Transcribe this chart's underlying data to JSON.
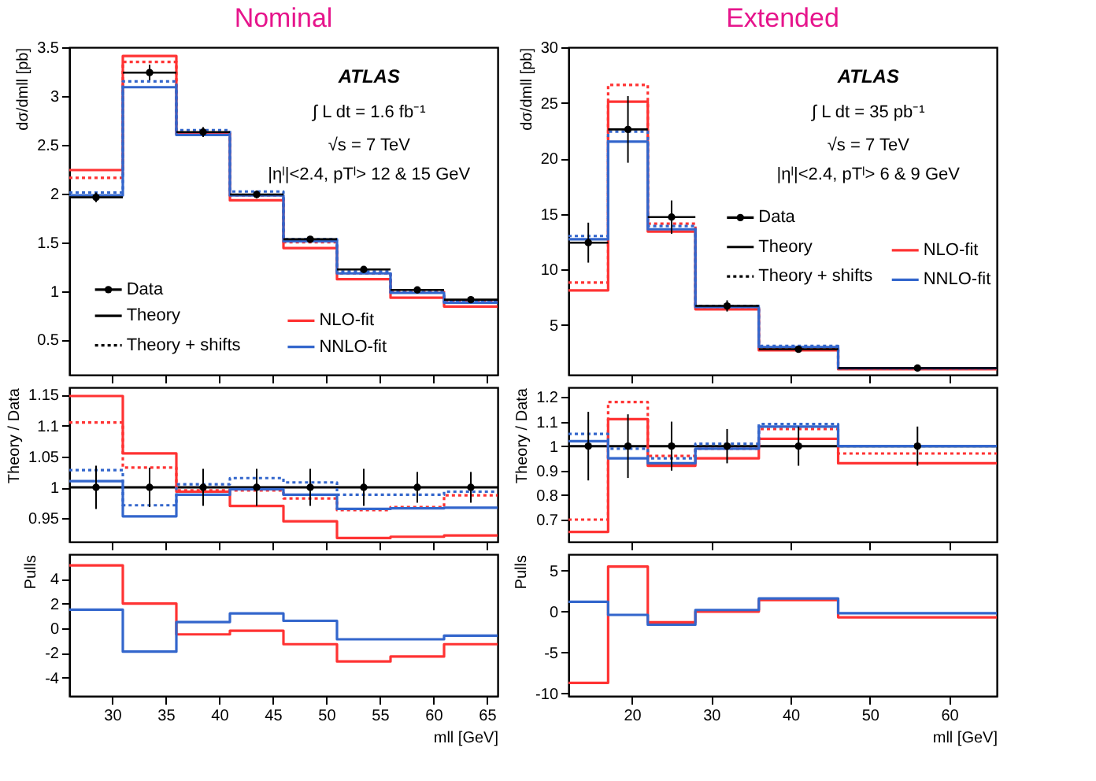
{
  "chart_data": [
    {
      "type": "step",
      "title": "Nominal",
      "ylabel": "dσ/dmll [pb]",
      "x": [
        26,
        31,
        36,
        41,
        46,
        51,
        56,
        61,
        66
      ],
      "xlim": [
        26,
        66
      ],
      "xticks": [
        30,
        35,
        40,
        45,
        50,
        55,
        60,
        65
      ],
      "ylim": [
        0.14,
        3.5
      ],
      "yticks": [
        0.5,
        1,
        1.5,
        2,
        2.5,
        3,
        3.5
      ],
      "tick_labels": "y",
      "legend": "bottom",
      "annotations": [
        "ATLAS",
        "∫ L dt = 1.6 fb⁻¹",
        "√s = 7 TeV",
        "|ηˡ|<2.4, pTˡ> 12 & 15 GeV",
        "Theory",
        "Theory + shifts"
      ],
      "series": [
        {
          "name": "NLO-fit",
          "color": "#ff3333",
          "values": [
            2.24,
            3.41,
            2.61,
            1.93,
            1.44,
            1.12,
            0.93,
            0.84,
            0.84
          ]
        },
        {
          "color": "#ff3333",
          "line_style": "dotted",
          "values": [
            2.16,
            3.35,
            2.62,
            1.98,
            1.5,
            1.18,
            0.99,
            0.9,
            0.9
          ]
        },
        {
          "name": "NNLO-fit",
          "color": "#3366cc",
          "values": [
            1.98,
            3.09,
            2.6,
            1.98,
            1.51,
            1.18,
            0.98,
            0.88,
            0.88
          ]
        },
        {
          "color": "#3366cc",
          "line_style": "dotted",
          "values": [
            2.01,
            3.15,
            2.65,
            2.02,
            1.53,
            1.2,
            0.99,
            0.89,
            0.89
          ]
        },
        {
          "name": "Data",
          "type": "scatter",
          "marker": "circle",
          "color": "#000000",
          "x": [
            28.5,
            33.5,
            38.5,
            43.5,
            48.5,
            53.5,
            58.5,
            63.5
          ],
          "values": [
            1.96,
            3.24,
            2.63,
            1.99,
            1.53,
            1.22,
            1.01,
            0.91
          ],
          "errors": [
            0.05,
            0.08,
            0.05,
            0.04,
            0.02,
            0.02,
            0.02,
            0.02
          ],
          "xerrors": [
            2.5,
            2.5,
            2.5,
            2.5,
            2.5,
            2.5,
            2.5,
            2.5
          ]
        }
      ]
    },
    {
      "type": "step",
      "ylabel": "Theory / Data",
      "x": [
        26,
        31,
        36,
        41,
        46,
        51,
        56,
        61,
        66
      ],
      "xlim": [
        26,
        66
      ],
      "xticks": [
        30,
        35,
        40,
        45,
        50,
        55,
        60,
        65
      ],
      "ylim": [
        0.912,
        1.162
      ],
      "yticks": [
        0.95,
        1,
        1.05,
        1.1,
        1.15
      ],
      "tick_labels": "y",
      "series": [
        {
          "color": "#ff3333",
          "values": [
            1.148,
            1.055,
            0.993,
            0.97,
            0.945,
            0.918,
            0.92,
            0.922,
            0.922
          ]
        },
        {
          "color": "#ff3333",
          "line_style": "dotted",
          "values": [
            1.105,
            1.032,
            0.995,
            0.995,
            0.982,
            0.963,
            0.968,
            0.987,
            0.987
          ]
        },
        {
          "color": "#3366cc",
          "values": [
            1.01,
            0.953,
            0.988,
            0.997,
            0.988,
            0.965,
            0.966,
            0.967,
            0.967
          ]
        },
        {
          "color": "#3366cc",
          "line_style": "dotted",
          "values": [
            1.028,
            0.971,
            1.005,
            1.015,
            1.008,
            0.988,
            0.988,
            0.993,
            0.993
          ]
        },
        {
          "type": "scatter",
          "marker": "circle",
          "color": "#000000",
          "x": [
            28.5,
            33.5,
            38.5,
            43.5,
            48.5,
            53.5,
            58.5,
            63.5
          ],
          "values": [
            1,
            1,
            1,
            1,
            1,
            1,
            1,
            1
          ],
          "errors": [
            0.035,
            0.032,
            0.03,
            0.03,
            0.03,
            0.03,
            0.025,
            0.025
          ]
        }
      ],
      "ref_lines": [
        {
          "axis": "y",
          "value": 1,
          "color": "#000000"
        }
      ]
    },
    {
      "type": "step",
      "ylabel": "Pulls",
      "xlabel": "mll [GeV]",
      "x": [
        26,
        31,
        36,
        41,
        46,
        51,
        56,
        61,
        66
      ],
      "xlim": [
        26,
        66
      ],
      "xticks": [
        30,
        35,
        40,
        45,
        50,
        55,
        60,
        65
      ],
      "ylim": [
        -5.5,
        6
      ],
      "yticks": [
        -4,
        -2,
        0,
        2,
        4
      ],
      "series": [
        {
          "color": "#ff3333",
          "values": [
            5.1,
            2.0,
            -0.5,
            -0.2,
            -1.3,
            -2.7,
            -2.3,
            -1.3,
            -1.3
          ]
        },
        {
          "color": "#3366cc",
          "values": [
            1.5,
            -1.9,
            0.5,
            1.2,
            0.6,
            -0.9,
            -0.9,
            -0.6,
            -0.6
          ]
        }
      ]
    },
    {
      "type": "step",
      "title": "Extended",
      "ylabel": "dσ/dmll [pb]",
      "x": [
        12,
        17,
        22,
        28,
        36,
        46,
        66
      ],
      "xlim": [
        12,
        66
      ],
      "xticks": [
        20,
        30,
        40,
        50,
        60
      ],
      "ylim": [
        0.5,
        30
      ],
      "yticks": [
        5,
        10,
        15,
        20,
        25,
        30
      ],
      "tick_labels": "y",
      "legend": "right",
      "annotations": [
        "ATLAS",
        "∫ L dt = 35 pb⁻¹",
        "√s = 7 TeV",
        "|ηˡ|<2.4, pTˡ> 6 & 9 GeV",
        "Theory",
        "Theory + shifts"
      ],
      "series": [
        {
          "name": "NLO-fit",
          "color": "#ff3333",
          "values": [
            8.1,
            25.1,
            13.4,
            6.4,
            2.7,
            1.0,
            1.0
          ]
        },
        {
          "color": "#ff3333",
          "line_style": "dotted",
          "values": [
            8.8,
            26.6,
            14.1,
            6.6,
            2.9,
            1.1,
            1.1
          ]
        },
        {
          "name": "NNLO-fit",
          "color": "#3366cc",
          "values": [
            12.7,
            21.5,
            13.6,
            6.6,
            3.0,
            1.1,
            1.1
          ]
        },
        {
          "color": "#3366cc",
          "line_style": "dotted",
          "values": [
            13.0,
            22.4,
            13.9,
            6.7,
            3.1,
            1.1,
            1.1
          ]
        },
        {
          "name": "Data",
          "type": "scatter",
          "marker": "circle",
          "color": "#000000",
          "x": [
            14.5,
            19.5,
            25,
            32,
            41,
            56
          ],
          "values": [
            12.4,
            22.6,
            14.7,
            6.7,
            2.8,
            1.1
          ],
          "errors": [
            1.8,
            3.0,
            1.5,
            0.5,
            0.15,
            0.1
          ],
          "xerrors": [
            2.5,
            2.5,
            3,
            4,
            5,
            10
          ]
        }
      ]
    },
    {
      "type": "step",
      "ylabel": "Theory / Data",
      "x": [
        12,
        17,
        22,
        28,
        36,
        46,
        66
      ],
      "xlim": [
        12,
        66
      ],
      "xticks": [
        20,
        30,
        40,
        50,
        60
      ],
      "ylim": [
        0.61,
        1.24
      ],
      "yticks": [
        0.7,
        0.8,
        0.9,
        1,
        1.1,
        1.2
      ],
      "tick_labels": "y",
      "series": [
        {
          "color": "#ff3333",
          "values": [
            0.65,
            1.11,
            0.92,
            0.95,
            1.03,
            0.93,
            0.93
          ]
        },
        {
          "color": "#ff3333",
          "line_style": "dotted",
          "values": [
            0.7,
            1.18,
            0.96,
            0.99,
            1.07,
            0.97,
            0.97
          ]
        },
        {
          "color": "#3366cc",
          "values": [
            1.02,
            0.95,
            0.93,
            0.99,
            1.08,
            1.0,
            1.0
          ]
        },
        {
          "color": "#3366cc",
          "line_style": "dotted",
          "values": [
            1.05,
            0.99,
            0.95,
            1.01,
            1.09,
            1.0,
            1.0
          ]
        },
        {
          "type": "scatter",
          "marker": "circle",
          "color": "#000000",
          "x": [
            14.5,
            19.5,
            25,
            32,
            41,
            56
          ],
          "values": [
            1,
            1,
            1,
            1,
            1,
            1
          ],
          "errors": [
            0.14,
            0.13,
            0.1,
            0.07,
            0.08,
            0.08
          ]
        }
      ],
      "ref_lines": [
        {
          "axis": "y",
          "value": 1,
          "color": "#000000"
        }
      ]
    },
    {
      "type": "step",
      "ylabel": "Pulls",
      "xlabel": "mll [GeV]",
      "x": [
        12,
        17,
        22,
        28,
        36,
        46,
        66
      ],
      "xlim": [
        12,
        66
      ],
      "xticks": [
        20,
        30,
        40,
        50,
        60
      ],
      "ylim": [
        -10.3,
        7
      ],
      "yticks": [
        -10,
        -5,
        0,
        5
      ],
      "series": [
        {
          "color": "#ff3333",
          "values": [
            -8.7,
            5.5,
            -1.3,
            0,
            1.4,
            -0.7,
            -0.7
          ]
        },
        {
          "color": "#3366cc",
          "values": [
            1.2,
            -0.4,
            -1.6,
            0.2,
            1.6,
            -0.2,
            -0.2
          ]
        }
      ]
    }
  ]
}
